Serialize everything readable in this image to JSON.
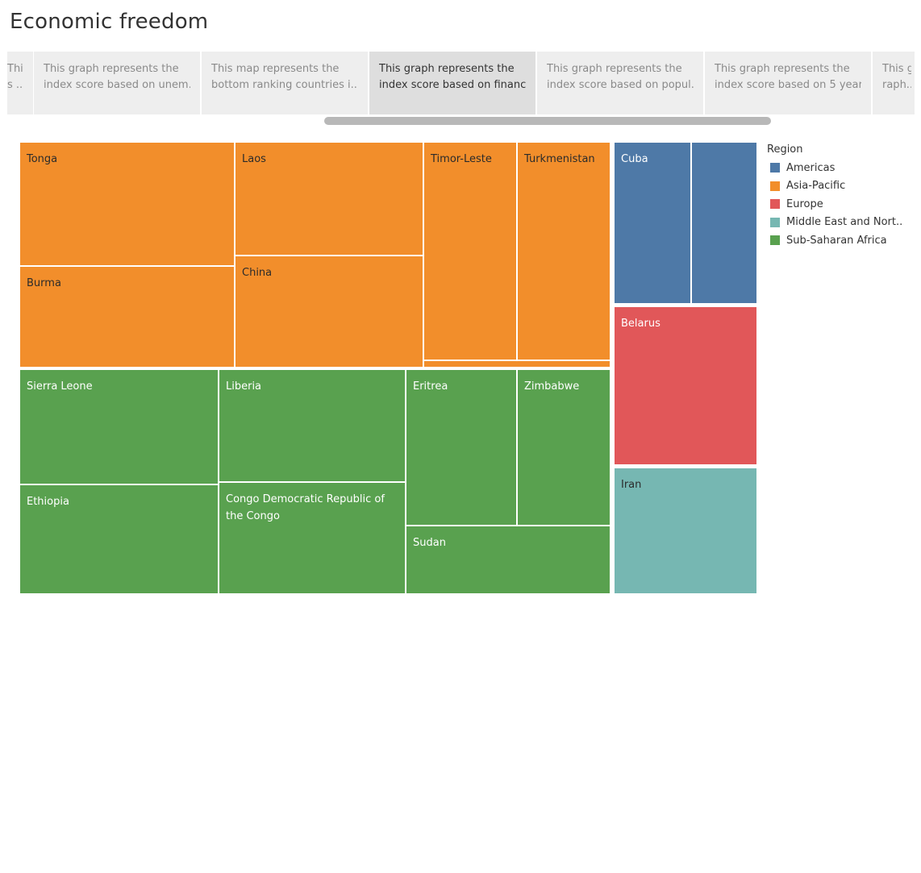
{
  "dashboard": {
    "title": "Economic freedom"
  },
  "story_tabs": [
    {
      "line1": "Thi",
      "line2": "s .."
    },
    {
      "line1": "This graph represents the",
      "line2": "index score based on unem.."
    },
    {
      "line1": "This map represents the",
      "line2": "bottom ranking countries i.."
    },
    {
      "line1": "This graph represents the",
      "line2": "index score based on financ.."
    },
    {
      "line1": "This graph represents the",
      "line2": "index score based on popul.."
    },
    {
      "line1": "This graph represents the",
      "line2": "index score based on 5 year.."
    },
    {
      "line1": "This g",
      "line2": "raph.."
    }
  ],
  "active_tab_index": 3,
  "legend": {
    "title": "Region",
    "items": [
      {
        "label": "Americas",
        "color": "#4e79a7"
      },
      {
        "label": "Asia-Pacific",
        "color": "#f28e2b"
      },
      {
        "label": "Europe",
        "color": "#e15759"
      },
      {
        "label": "Middle East and Nort..",
        "color": "#76b7b2"
      },
      {
        "label": "Sub-Saharan Africa",
        "color": "#59a14f"
      }
    ]
  },
  "treemap": {
    "cells": [
      {
        "label": "Tonga",
        "region": "Asia-Pacific"
      },
      {
        "label": "Burma",
        "region": "Asia-Pacific"
      },
      {
        "label": "Laos",
        "region": "Asia-Pacific"
      },
      {
        "label": "China",
        "region": "Asia-Pacific"
      },
      {
        "label": "Timor-Leste",
        "region": "Asia-Pacific"
      },
      {
        "label": "Turkmenistan",
        "region": "Asia-Pacific"
      },
      {
        "label": "",
        "region": "Asia-Pacific"
      },
      {
        "label": "Sierra Leone",
        "region": "Sub-Saharan Africa"
      },
      {
        "label": "Ethiopia",
        "region": "Sub-Saharan Africa"
      },
      {
        "label": "Liberia",
        "region": "Sub-Saharan Africa"
      },
      {
        "label": "Congo Democratic Republic of the Congo",
        "region": "Sub-Saharan Africa"
      },
      {
        "label": "Eritrea",
        "region": "Sub-Saharan Africa"
      },
      {
        "label": "Zimbabwe",
        "region": "Sub-Saharan Africa"
      },
      {
        "label": "Sudan",
        "region": "Sub-Saharan Africa"
      },
      {
        "label": "Cuba",
        "region": "Americas"
      },
      {
        "label": "",
        "region": "Americas"
      },
      {
        "label": "Belarus",
        "region": "Europe"
      },
      {
        "label": "Iran",
        "region": "Middle East and Nort.."
      }
    ]
  }
}
